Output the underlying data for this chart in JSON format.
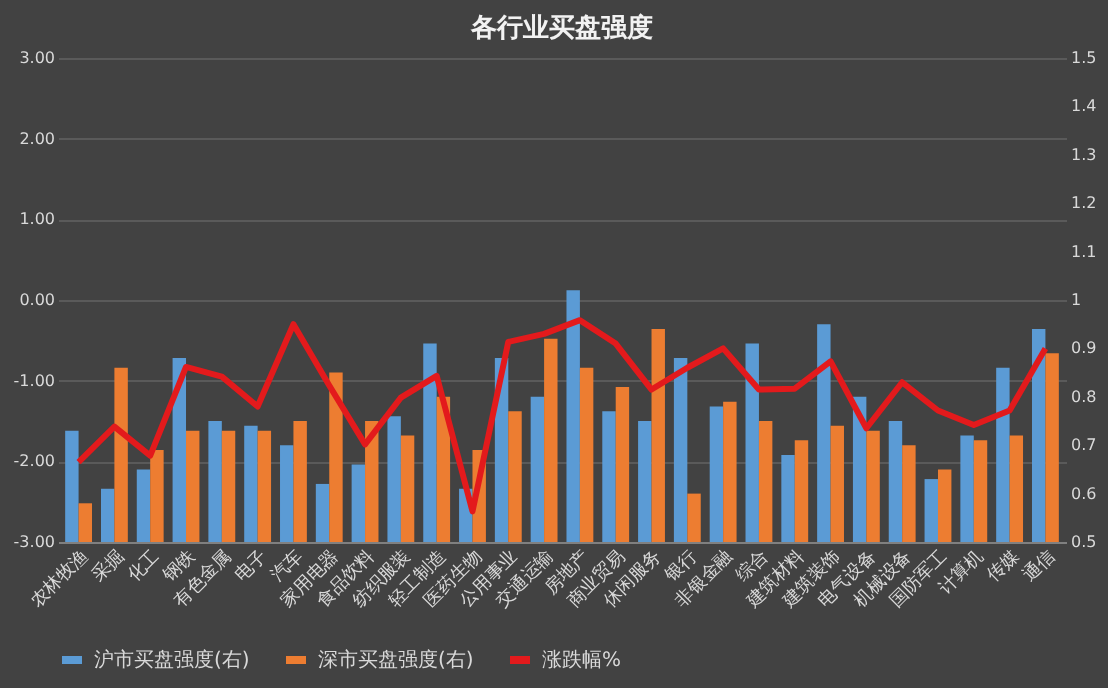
{
  "chart_data": {
    "type": "bar",
    "title": "各行业买盘强度",
    "categories": [
      "农林牧渔",
      "采掘",
      "化工",
      "钢铁",
      "有色金属",
      "电子",
      "汽车",
      "家用电器",
      "食品饮料",
      "纺织服装",
      "轻工制造",
      "医药生物",
      "公用事业",
      "交通运输",
      "房地产",
      "商业贸易",
      "休闲服务",
      "银行",
      "非银金融",
      "综合",
      "建筑材料",
      "建筑装饰",
      "电气设备",
      "机械设备",
      "国防军工",
      "计算机",
      "传媒",
      "通信"
    ],
    "series": [
      {
        "name": "沪市买盘强度(右)",
        "color": "#5b9bd5",
        "axis": "y2",
        "values": [
          0.73,
          0.61,
          0.65,
          0.88,
          0.75,
          0.74,
          0.7,
          0.62,
          0.66,
          0.76,
          0.91,
          0.61,
          0.88,
          0.8,
          1.02,
          0.77,
          0.75,
          0.88,
          0.78,
          0.91,
          0.68,
          0.95,
          0.8,
          0.75,
          0.63,
          0.72,
          0.86,
          0.94
        ]
      },
      {
        "name": "深市买盘强度(右)",
        "color": "#ed7d31",
        "axis": "y2",
        "values": [
          0.58,
          0.86,
          0.69,
          0.73,
          0.73,
          0.73,
          0.75,
          0.85,
          0.75,
          0.72,
          0.8,
          0.69,
          0.77,
          0.92,
          0.86,
          0.82,
          0.94,
          0.6,
          0.79,
          0.75,
          0.71,
          0.74,
          0.73,
          0.7,
          0.65,
          0.71,
          0.72,
          0.89
        ]
      },
      {
        "name": "涨跌幅%",
        "color": "#e31a1c",
        "type": "line",
        "axis": "y",
        "values": [
          -2.01,
          -1.57,
          -1.93,
          -0.83,
          -0.95,
          -1.32,
          -0.3,
          -1.06,
          -1.79,
          -1.21,
          -0.94,
          -2.62,
          -0.52,
          -0.42,
          -0.25,
          -0.54,
          -1.11,
          -0.84,
          -0.6,
          -1.11,
          -1.1,
          -0.76,
          -1.59,
          -1.02,
          -1.37,
          -1.55,
          -1.37,
          -0.6
        ]
      }
    ],
    "ylim": [
      -3,
      3
    ],
    "yticks": [
      {
        "value": -3,
        "label": "-3.00"
      },
      {
        "value": -2,
        "label": "-2.00"
      },
      {
        "value": -1,
        "label": "-1.00"
      },
      {
        "value": 0,
        "label": "0.00"
      },
      {
        "value": 1,
        "label": "1.00"
      },
      {
        "value": 2,
        "label": "2.00"
      },
      {
        "value": 3,
        "label": "3.00"
      }
    ],
    "y2lim": [
      0.5,
      1.5
    ],
    "y2ticks": [
      0.5,
      0.6,
      0.7,
      0.8,
      0.9,
      1,
      1.1,
      1.2,
      1.3,
      1.4,
      1.5
    ],
    "grid": "y",
    "legend": "bottom",
    "marker": "none",
    "line_style": "solid"
  }
}
